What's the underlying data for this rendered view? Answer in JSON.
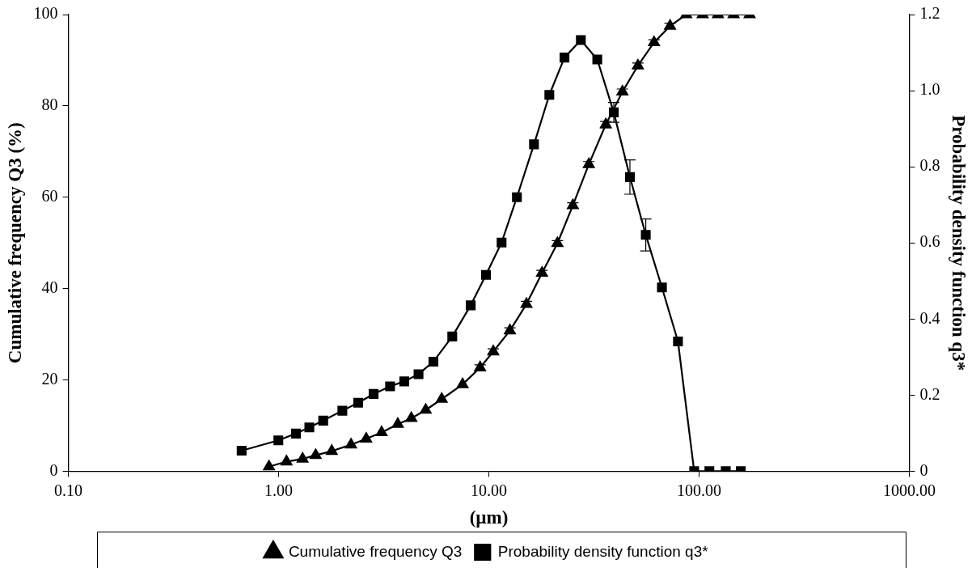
{
  "chart_data": {
    "type": "line",
    "xlabel": "(µm)",
    "ylabel": "Cumulative frequency Q3 (%)",
    "y2label": "Probability density function q3*",
    "log": "x",
    "xlim": [
      0.1,
      1000
    ],
    "xticks": [
      {
        "value": 0.1,
        "label": "0.10"
      },
      {
        "value": 1,
        "label": "1.00"
      },
      {
        "value": 10,
        "label": "10.00"
      },
      {
        "value": 100,
        "label": "100.00"
      },
      {
        "value": 1000,
        "label": "1000.00"
      }
    ],
    "ylim": [
      0,
      100
    ],
    "yticks": [
      0,
      20,
      40,
      60,
      80,
      100
    ],
    "y2lim": [
      0,
      1.2
    ],
    "y2ticks": [
      0,
      0.2,
      0.4,
      0.6,
      0.8,
      {
        "value": 1,
        "label": "1.0"
      },
      1.2
    ],
    "grid": false,
    "legend": "bottom",
    "line_style": "solid",
    "series": [
      {
        "name": "Cumulative frequency Q3",
        "color": "#000000",
        "marker": "triangle",
        "x": [
          0.9,
          1.09,
          1.3,
          1.5,
          1.79,
          2.21,
          2.61,
          3.09,
          3.69,
          4.28,
          5.01,
          5.97,
          7.5,
          9.09,
          10.5,
          12.6,
          15.1,
          17.9,
          21.2,
          25.1,
          29.9,
          36.0,
          43.2,
          51.2,
          61.1,
          72.8,
          86.9,
          104,
          123,
          146,
          174
        ],
        "values": [
          1.0,
          2.1,
          2.7,
          3.5,
          4.4,
          5.8,
          7.1,
          8.5,
          10.3,
          11.6,
          13.4,
          15.8,
          19.0,
          22.7,
          26.2,
          30.8,
          36.6,
          43.4,
          49.9,
          58.2,
          67.2,
          75.9,
          83.1,
          88.8,
          93.9,
          97.5,
          100,
          100,
          100,
          100,
          100
        ],
        "errors": [
          null,
          null,
          null,
          null,
          null,
          null,
          null,
          null,
          null,
          null,
          null,
          null,
          null,
          0.6,
          0.6,
          0.6,
          0.6,
          0.6,
          0.6,
          0.6,
          0.6,
          0.7,
          0.6,
          0.6,
          0.6,
          0.6,
          null,
          null,
          null,
          null,
          null
        ]
      },
      {
        "name": "Probability density function q3*",
        "color": "#000000",
        "marker": "square",
        "axis": "y2",
        "x": [
          0.667,
          0.997,
          1.21,
          1.4,
          1.63,
          2.01,
          2.39,
          2.83,
          3.39,
          3.96,
          4.63,
          5.45,
          6.7,
          8.2,
          9.69,
          11.5,
          13.6,
          16.4,
          19.4,
          22.9,
          27.4,
          32.8,
          39.3,
          46.9,
          55.8,
          66.6,
          79.4,
          94.8,
          112,
          134,
          158
        ],
        "values": [
          0.054,
          0.081,
          0.099,
          0.115,
          0.133,
          0.159,
          0.18,
          0.203,
          0.223,
          0.236,
          0.255,
          0.288,
          0.354,
          0.436,
          0.516,
          0.601,
          0.72,
          0.859,
          0.989,
          1.087,
          1.133,
          1.082,
          0.943,
          0.773,
          0.621,
          0.483,
          0.341,
          0,
          0,
          0,
          0
        ],
        "errors": [
          null,
          null,
          null,
          null,
          null,
          null,
          null,
          null,
          null,
          null,
          null,
          null,
          null,
          null,
          null,
          null,
          null,
          null,
          null,
          null,
          null,
          null,
          0.026,
          0.045,
          0.042,
          null,
          null,
          null,
          null,
          null,
          null
        ]
      }
    ]
  }
}
